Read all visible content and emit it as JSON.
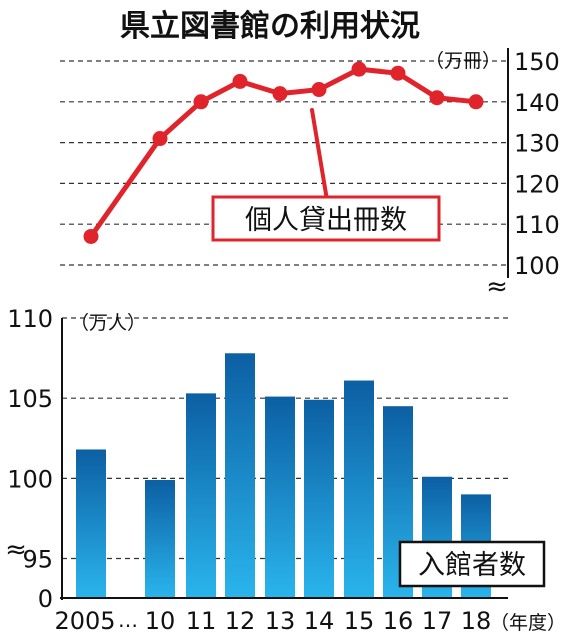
{
  "title": "県立図書館の利用状況",
  "chart_data": [
    {
      "type": "line",
      "name_label": "個人貸出冊数",
      "unit": "（万冊）",
      "ylim": [
        100,
        150
      ],
      "yticks": [
        100,
        110,
        120,
        130,
        140,
        150
      ],
      "x": [
        "2005",
        "10",
        "11",
        "12",
        "13",
        "14",
        "15",
        "16",
        "17",
        "18"
      ],
      "values": [
        107,
        131,
        140,
        145,
        142,
        143,
        148,
        147,
        141,
        140
      ],
      "color": "#e0242b",
      "grid": true,
      "axis_side": "right",
      "axis_break": "≈"
    },
    {
      "type": "bar",
      "name_label": "入館者数",
      "unit": "（万人）",
      "ylim": [
        95,
        110
      ],
      "yticks": [
        0,
        95,
        100,
        105,
        110
      ],
      "categories": [
        "2005",
        "10",
        "11",
        "12",
        "13",
        "14",
        "15",
        "16",
        "17",
        "18"
      ],
      "values": [
        101.8,
        99.9,
        105.3,
        107.8,
        105.1,
        104.9,
        106.1,
        104.5,
        100.1,
        99.0
      ],
      "color_top": "#0c5fa3",
      "color_bottom": "#2ab4ec",
      "grid": true,
      "axis_side": "left",
      "axis_break": "≈",
      "x_ellipsis": "…",
      "xlabel": "（年度）"
    }
  ]
}
